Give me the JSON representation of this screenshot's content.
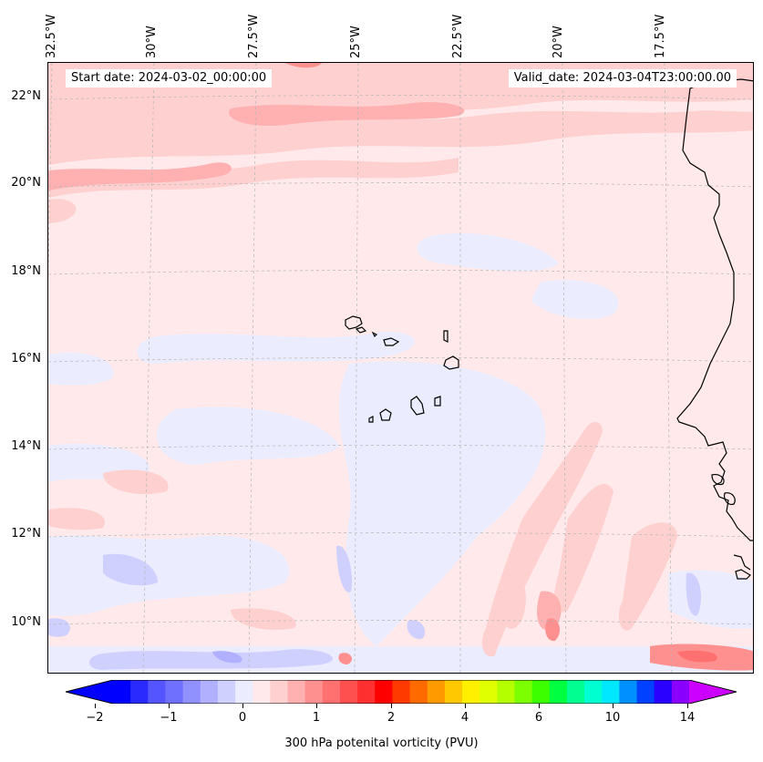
{
  "header": {
    "start_date": "Start date: 2024-03-02_00:00:00",
    "valid_date": "Valid_date: 2024-03-04T23:00:00.00"
  },
  "map": {
    "longitude_labels": [
      "32.5°W",
      "30°W",
      "27.5°W",
      "25°W",
      "22.5°W",
      "20°W",
      "17.5°W"
    ],
    "latitude_labels": [
      "22°N",
      "20°N",
      "18°N",
      "16°N",
      "14°N",
      "12°N",
      "10°N"
    ],
    "gridlines": true,
    "coastlines": true
  },
  "colorbar": {
    "label": "300 hPa potenital vorticity (PVU)",
    "ticks": [
      "−2",
      "−1",
      "0",
      "1",
      "2",
      "4",
      "6",
      "10",
      "14"
    ],
    "colors": [
      "#0000ff",
      "#2a2aff",
      "#5555ff",
      "#7070ff",
      "#9090ff",
      "#b0b0ff",
      "#d0d0ff",
      "#ececff",
      "#ffe9ea",
      "#ffd0d0",
      "#ffb0b0",
      "#ff9090",
      "#ff7070",
      "#ff5050",
      "#ff3030",
      "#ff0000",
      "#ff3a00",
      "#ff6a00",
      "#ff9a00",
      "#ffc800",
      "#fff000",
      "#e0ff00",
      "#b4ff00",
      "#7cff00",
      "#3cff00",
      "#00ff40",
      "#00ff90",
      "#00ffd0",
      "#00e8ff",
      "#0090ff",
      "#0040ff",
      "#2a00ff",
      "#8a00ff"
    ],
    "extend": "both",
    "low_color": "#0000ff",
    "high_color": "#cc00ff"
  }
}
